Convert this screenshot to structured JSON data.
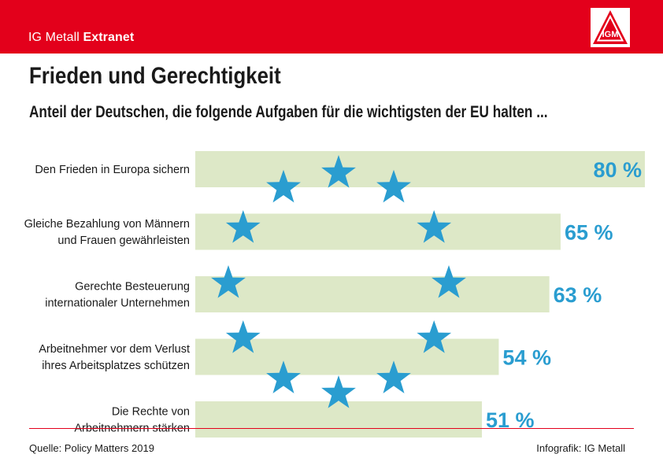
{
  "header": {
    "brand_regular": "IG Metall",
    "brand_bold": "Extranet",
    "logo_text": "IGM"
  },
  "colors": {
    "header_red": "#e3001b",
    "bar_fill": "#dde8c7",
    "star_blue": "#2a9dd0",
    "value_blue": "#2a9dd0"
  },
  "title": "Frieden und Gerechtigkeit",
  "subtitle": "Anteil der Deutschen, die folgende Aufgaben für die wichtigsten der EU halten ...",
  "chart_data": {
    "type": "bar",
    "orientation": "horizontal",
    "categories": [
      [
        "Den Frieden in Europa sichern"
      ],
      [
        "Gleiche Bezahlung von Männern",
        "und Frauen gewährleisten"
      ],
      [
        "Gerechte Besteuerung",
        "internationaler Unternehmen"
      ],
      [
        "Arbeitnehmer vor dem Verlust",
        "ihres Arbeitsplatzes schützen"
      ],
      [
        "Die Rechte von",
        "Arbeitnehmern stärken"
      ]
    ],
    "values": [
      80,
      65,
      63,
      54,
      51
    ],
    "value_labels": [
      "80 %",
      "65 %",
      "63 %",
      "54 %",
      "51 %"
    ],
    "unit": "%",
    "xlim": [
      0,
      80
    ],
    "grid": false,
    "legend": "none",
    "decoration": "ring of twelve EU stars over the bars"
  },
  "footer": {
    "source": "Quelle: Policy Matters 2019",
    "credit": "Infografik: IG Metall"
  }
}
